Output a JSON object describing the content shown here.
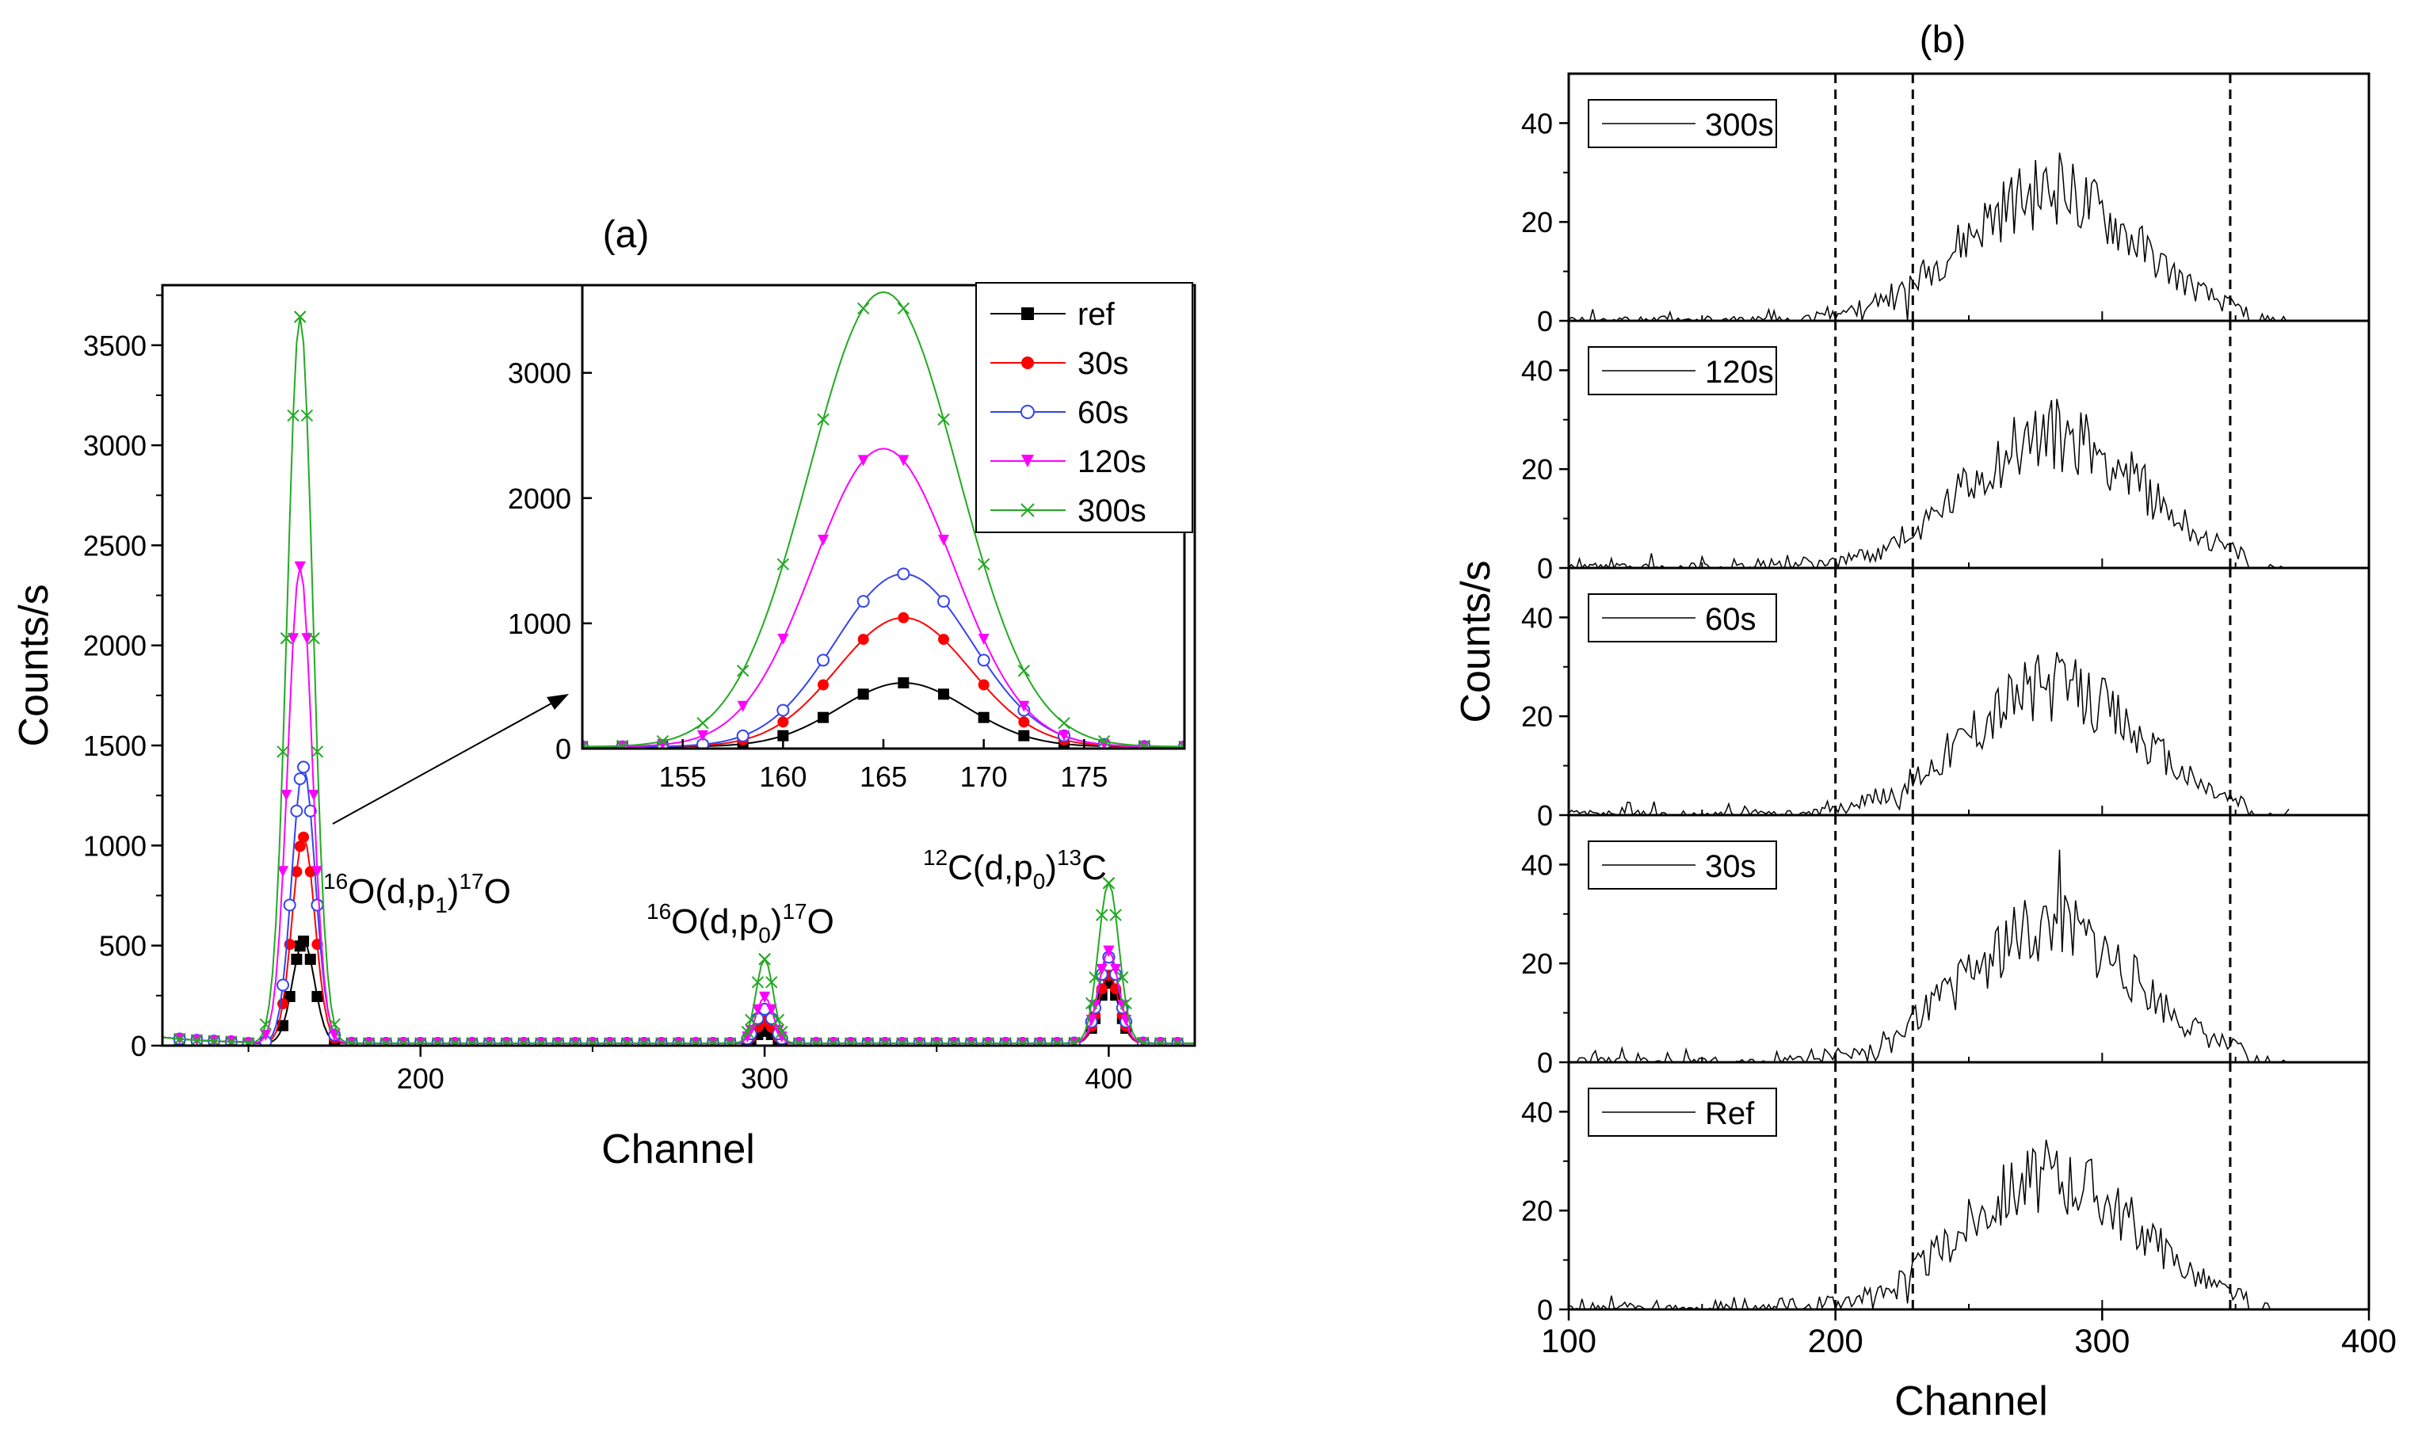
{
  "colors": {
    "ref": "#000000",
    "s30": "#ff0000",
    "s60": "#3344ee",
    "s120": "#ff00ff",
    "s300": "#22aa22",
    "axis": "#000000",
    "dash": "#000000"
  },
  "chart_data": [
    {
      "panel": "a",
      "title": "(a)",
      "type": "line",
      "xlabel": "Channel",
      "ylabel": "Counts/s",
      "xlim": [
        125,
        425
      ],
      "ylim": [
        0,
        3800
      ],
      "xticks": [
        "200",
        "300",
        "400"
      ],
      "yticks": [
        "0",
        "500",
        "1000",
        "1500",
        "2000",
        "2500",
        "3000",
        "3500"
      ],
      "annotations": [
        {
          "parts": [
            "16",
            "O(d,p",
            "1",
            ")",
            "17",
            "O"
          ]
        },
        {
          "parts": [
            "16",
            "O(d,p",
            "0",
            ")",
            "17",
            "O"
          ]
        },
        {
          "parts": [
            "12",
            "C(d,p",
            "0",
            ")",
            "13",
            "C"
          ]
        }
      ],
      "series": [
        {
          "name": "ref",
          "color": "#000000",
          "marker": "square",
          "peaks": [
            [
              166,
              510,
              3.2
            ],
            [
              300,
              60,
              2.5
            ],
            [
              400,
              300,
              3
            ]
          ]
        },
        {
          "name": "30s",
          "color": "#ff0000",
          "marker": "circle",
          "peaks": [
            [
              166,
              1030,
              3.3
            ],
            [
              300,
              110,
              2.5
            ],
            [
              400,
              340,
              3
            ]
          ]
        },
        {
          "name": "60s",
          "color": "#3344ee",
          "marker": "circle-open",
          "peaks": [
            [
              166,
              1380,
              3.4
            ],
            [
              300,
              170,
              2.5
            ],
            [
              400,
              430,
              3
            ]
          ]
        },
        {
          "name": "120s",
          "color": "#ff00ff",
          "marker": "triangle-down",
          "peaks": [
            [
              165,
              2380,
              3.5
            ],
            [
              300,
              230,
              2.5
            ],
            [
              400,
              460,
              3
            ]
          ]
        },
        {
          "name": "300s",
          "color": "#22aa22",
          "marker": "x",
          "peaks": [
            [
              165,
              3630,
              3.7
            ],
            [
              300,
              420,
              2.5
            ],
            [
              400,
              800,
              3
            ]
          ]
        }
      ],
      "inset": {
        "xlim": [
          150,
          180
        ],
        "ylim": [
          0,
          3700
        ],
        "xticks": [
          "155",
          "160",
          "165",
          "170",
          "175"
        ],
        "yticks": [
          "0",
          "1000",
          "2000",
          "3000"
        ]
      },
      "legend": {
        "entries": [
          "ref",
          "30s",
          "60s",
          "120s",
          "300s"
        ],
        "placement": "top-right"
      }
    },
    {
      "panel": "b",
      "title": "(b)",
      "type": "line",
      "xlabel": "Channel",
      "ylabel": "Counts/s",
      "xlim": [
        100,
        400
      ],
      "ylim": [
        0,
        50
      ],
      "xticks": [
        "100",
        "200",
        "300",
        "400"
      ],
      "yticks": [
        "0",
        "20",
        "40"
      ],
      "vlines": [
        200,
        229,
        348
      ],
      "panels": [
        {
          "label": "300s",
          "peak": 280,
          "height": 26,
          "seed": 11
        },
        {
          "label": "120s",
          "peak": 282,
          "height": 27,
          "seed": 23
        },
        {
          "label": "60s",
          "peak": 281,
          "height": 26,
          "seed": 37
        },
        {
          "label": "30s",
          "peak": 280,
          "height": 27,
          "seed": 51
        },
        {
          "label": "Ref",
          "peak": 281,
          "height": 27,
          "seed": 67
        }
      ]
    }
  ]
}
